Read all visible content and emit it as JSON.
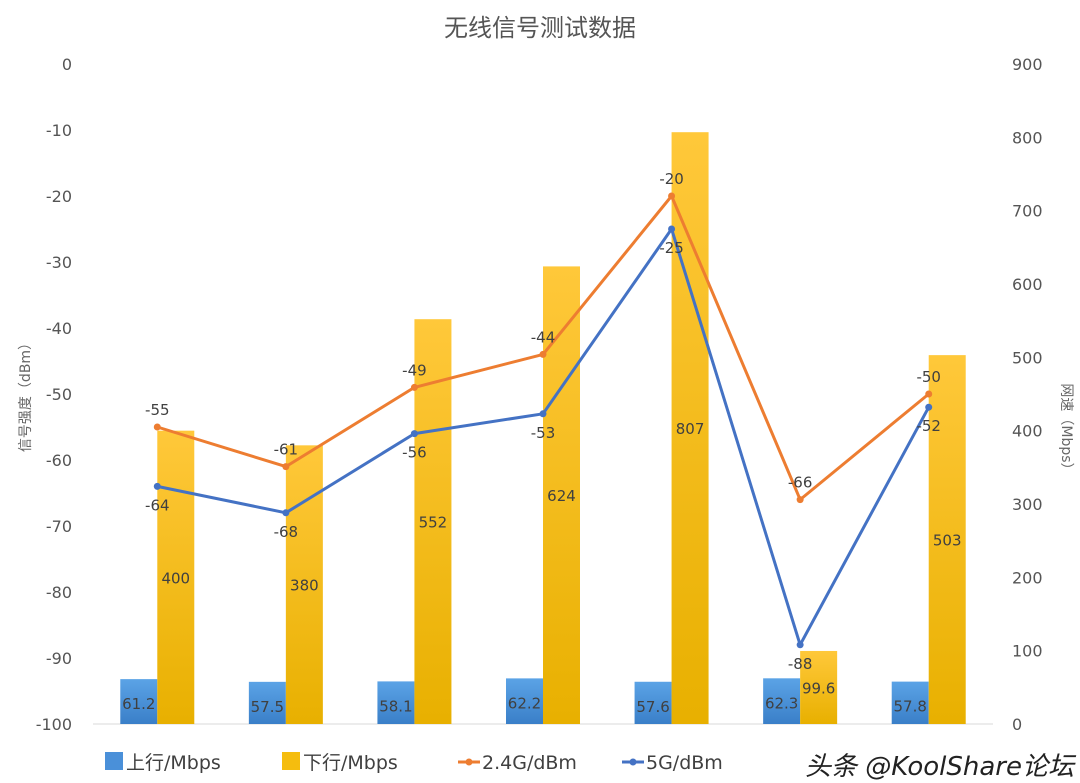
{
  "chart_data": {
    "type": "bar+line",
    "title": "无线信号测试数据",
    "ylabel": "信号强度（dBm）",
    "y2label": "网速（Mbps）",
    "ylim": [
      -100,
      0
    ],
    "y2lim": [
      0,
      900
    ],
    "yticks": [
      0,
      -10,
      -20,
      -30,
      -40,
      -50,
      -60,
      -70,
      -80,
      -90,
      -100
    ],
    "y2ticks": [
      900,
      800,
      700,
      600,
      500,
      400,
      300,
      200,
      100,
      0
    ],
    "grid": false,
    "legend": "bottom",
    "categories": [
      "",
      "",
      "",
      "",
      "",
      "",
      ""
    ],
    "series": [
      {
        "name": "上行/Mbps",
        "type": "bar",
        "axis": "right",
        "color": "#4a90d9",
        "values": [
          61.2,
          57.5,
          58.1,
          62.2,
          57.6,
          62.3,
          57.8
        ]
      },
      {
        "name": "下行/Mbps",
        "type": "bar",
        "axis": "right",
        "color": "#f5bd0e",
        "values": [
          400,
          380,
          552,
          624,
          807,
          99.6,
          503
        ]
      },
      {
        "name": "2.4G/dBm",
        "type": "line",
        "axis": "left",
        "color": "#ed7d31",
        "values": [
          -55,
          -61,
          -49,
          -44,
          -20,
          -66,
          -50
        ]
      },
      {
        "name": "5G/dBm",
        "type": "line",
        "axis": "left",
        "color": "#4472c4",
        "values": [
          -64,
          -68,
          -56,
          -53,
          -25,
          -88,
          -52
        ]
      }
    ]
  },
  "watermark": "头条 @KoolShare论坛"
}
